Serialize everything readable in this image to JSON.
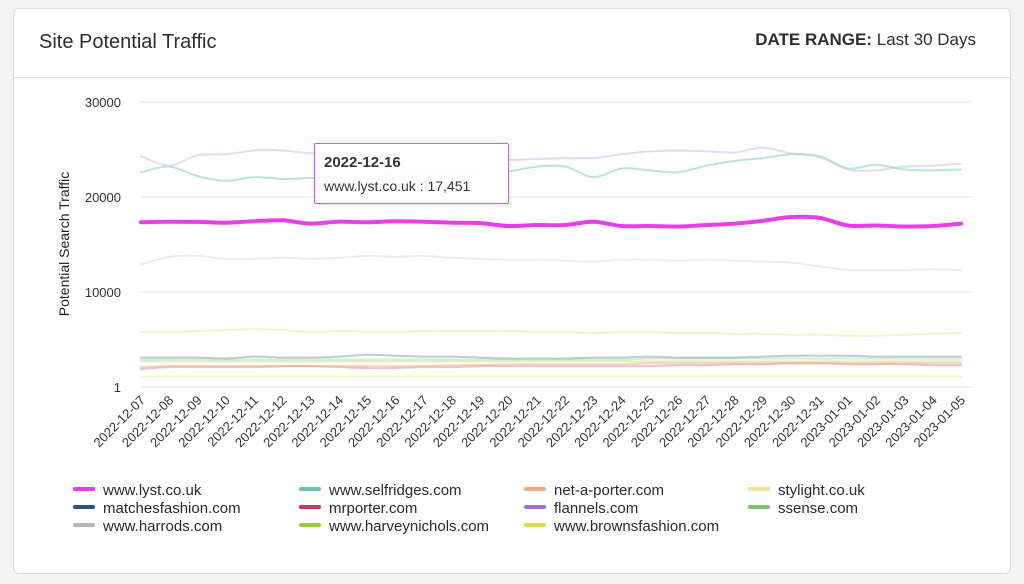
{
  "header": {
    "title": "Site Potential Traffic",
    "date_range_label": "DATE RANGE:",
    "date_range_value": "Last 30 Days"
  },
  "tooltip": {
    "date": "2022-12-16",
    "text": "www.lyst.co.uk : 17,451"
  },
  "chart_data": {
    "type": "line",
    "title": "",
    "ylabel": "Potential Search Traffic",
    "xlabel": "",
    "ylim": [
      1,
      30000
    ],
    "yticks": [
      "1",
      "10000",
      "20000",
      "30000"
    ],
    "grid": true,
    "legend_position": "bottom",
    "x": [
      "2022-12-07",
      "2022-12-08",
      "2022-12-09",
      "2022-12-10",
      "2022-12-11",
      "2022-12-12",
      "2022-12-13",
      "2022-12-14",
      "2022-12-15",
      "2022-12-16",
      "2022-12-17",
      "2022-12-18",
      "2022-12-19",
      "2022-12-20",
      "2022-12-21",
      "2022-12-22",
      "2022-12-23",
      "2022-12-24",
      "2022-12-25",
      "2022-12-26",
      "2022-12-27",
      "2022-12-28",
      "2022-12-29",
      "2022-12-30",
      "2022-12-31",
      "2023-01-01",
      "2023-01-02",
      "2023-01-03",
      "2023-01-04",
      "2023-01-05"
    ],
    "series": [
      {
        "name": "www.lyst.co.uk",
        "color": "#e83de8",
        "width": 4,
        "opacity": 1,
        "values": [
          17350,
          17400,
          17380,
          17300,
          17450,
          17550,
          17200,
          17400,
          17350,
          17451,
          17400,
          17300,
          17250,
          16950,
          17050,
          17050,
          17400,
          16950,
          16950,
          16900,
          17050,
          17200,
          17500,
          17900,
          17800,
          17000,
          17000,
          16900,
          16950,
          17200
        ]
      },
      {
        "name": "www.selfridges.com",
        "color": "#9fd8c4",
        "width": 2,
        "opacity": 0.7,
        "values": [
          22600,
          23200,
          22200,
          21700,
          22100,
          21900,
          22000,
          22100,
          22300,
          22400,
          22700,
          22800,
          22600,
          22700,
          23200,
          23200,
          22100,
          23000,
          22800,
          22600,
          23300,
          23800,
          24100,
          24500,
          24300,
          23000,
          23400,
          22900,
          22800,
          22900
        ]
      },
      {
        "name": "net-a-porter.com",
        "color": "#f4a97e",
        "width": 2,
        "opacity": 0.5,
        "values": [
          2100,
          2200,
          2200,
          2200,
          2200,
          2200,
          2200,
          2200,
          2200,
          2200,
          2200,
          2300,
          2300,
          2400,
          2400,
          2400,
          2400,
          2400,
          2500,
          2500,
          2500,
          2500,
          2500,
          2500,
          2500,
          2500,
          2500,
          2500,
          2500,
          2500
        ]
      },
      {
        "name": "stylight.co.uk",
        "color": "#f3e29a",
        "width": 2,
        "opacity": 0.5,
        "values": [
          5800,
          5800,
          5900,
          6000,
          6100,
          6000,
          5800,
          5900,
          5800,
          5800,
          5900,
          5900,
          5900,
          5900,
          5800,
          5800,
          5700,
          5800,
          5800,
          5700,
          5700,
          5600,
          5600,
          5500,
          5500,
          5400,
          5400,
          5500,
          5600,
          5700
        ]
      },
      {
        "name": "matchesfashion.com",
        "color": "#2f4f8f",
        "width": 2,
        "opacity": 0.3,
        "values": [
          3100,
          3100,
          3100,
          3000,
          3200,
          3100,
          3100,
          3200,
          3400,
          3300,
          3200,
          3200,
          3100,
          3000,
          3000,
          3000,
          3100,
          3100,
          3200,
          3100,
          3100,
          3100,
          3200,
          3300,
          3300,
          3300,
          3200,
          3200,
          3200,
          3200
        ]
      },
      {
        "name": "mrporter.com",
        "color": "#d92c5a",
        "width": 2,
        "opacity": 0.3,
        "values": [
          1900,
          2100,
          2100,
          2100,
          2100,
          2200,
          2200,
          2100,
          2000,
          2000,
          2100,
          2100,
          2200,
          2200,
          2200,
          2200,
          2200,
          2200,
          2200,
          2300,
          2300,
          2400,
          2400,
          2500,
          2500,
          2400,
          2400,
          2400,
          2300,
          2300
        ]
      },
      {
        "name": "flannels.com",
        "color": "#a06ae8",
        "width": 2,
        "opacity": 0.25,
        "values": [
          24300,
          23300,
          24400,
          24500,
          24900,
          24900,
          24600,
          24500,
          24300,
          24200,
          24100,
          24000,
          23800,
          23900,
          24000,
          24100,
          24100,
          24500,
          24800,
          24900,
          24800,
          24700,
          25200,
          24600,
          24200,
          22900,
          22800,
          23200,
          23300,
          23500
        ]
      },
      {
        "name": "ssense.com",
        "color": "#7fc46a",
        "width": 2,
        "opacity": 0.3,
        "values": [
          2900,
          2900,
          2900,
          2900,
          2900,
          2900,
          2900,
          2900,
          2900,
          2900,
          2900,
          2900,
          2900,
          2900,
          2900,
          2900,
          2900,
          2900,
          3000,
          3000,
          3000,
          3000,
          3000,
          3000,
          3000,
          3000,
          3000,
          3000,
          3000,
          3000
        ]
      },
      {
        "name": "www.harrods.com",
        "color": "#b5b5b8",
        "width": 2,
        "opacity": 0.25,
        "values": [
          12900,
          13700,
          13800,
          13500,
          13500,
          13600,
          13500,
          13600,
          13800,
          13700,
          13800,
          13600,
          13500,
          13400,
          13400,
          13300,
          13200,
          13400,
          13400,
          13300,
          13400,
          13300,
          13200,
          13100,
          12700,
          12300,
          12300,
          12300,
          12400,
          12300
        ]
      },
      {
        "name": "www.harveynichols.com",
        "color": "#9acd32",
        "width": 2,
        "opacity": 0.3,
        "values": [
          2700,
          2700,
          2700,
          2700,
          2700,
          2700,
          2700,
          2700,
          2700,
          2700,
          2700,
          2700,
          2700,
          2700,
          2700,
          2700,
          2700,
          2700,
          2700,
          2700,
          2700,
          2700,
          2700,
          2700,
          2700,
          2700,
          2700,
          2700,
          2700,
          2700
        ]
      },
      {
        "name": "www.brownsfashion.com",
        "color": "#d4df4a",
        "width": 2,
        "opacity": 0.3,
        "values": [
          1100,
          1100,
          1100,
          1100,
          1100,
          1100,
          1100,
          1100,
          1100,
          1100,
          1100,
          1100,
          1100,
          1100,
          1100,
          1100,
          1100,
          1100,
          1100,
          1100,
          1100,
          1100,
          1100,
          1100,
          1100,
          1100,
          1100,
          1100,
          1100,
          1100
        ]
      }
    ]
  },
  "legend": [
    {
      "label": "www.lyst.co.uk",
      "color": "#e83de8"
    },
    {
      "label": "www.selfridges.com",
      "color": "#6cc4a6"
    },
    {
      "label": "net-a-porter.com",
      "color": "#f4a97e"
    },
    {
      "label": "stylight.co.uk",
      "color": "#f3e29a"
    },
    {
      "label": "matchesfashion.com",
      "color": "#2f4f8f"
    },
    {
      "label": "mrporter.com",
      "color": "#d92c5a"
    },
    {
      "label": "flannels.com",
      "color": "#a06ae8"
    },
    {
      "label": "ssense.com",
      "color": "#7fc46a"
    },
    {
      "label": "www.harrods.com",
      "color": "#b5b5b8"
    },
    {
      "label": "www.harveynichols.com",
      "color": "#9acd32"
    },
    {
      "label": "www.brownsfashion.com",
      "color": "#d4df4a"
    }
  ]
}
